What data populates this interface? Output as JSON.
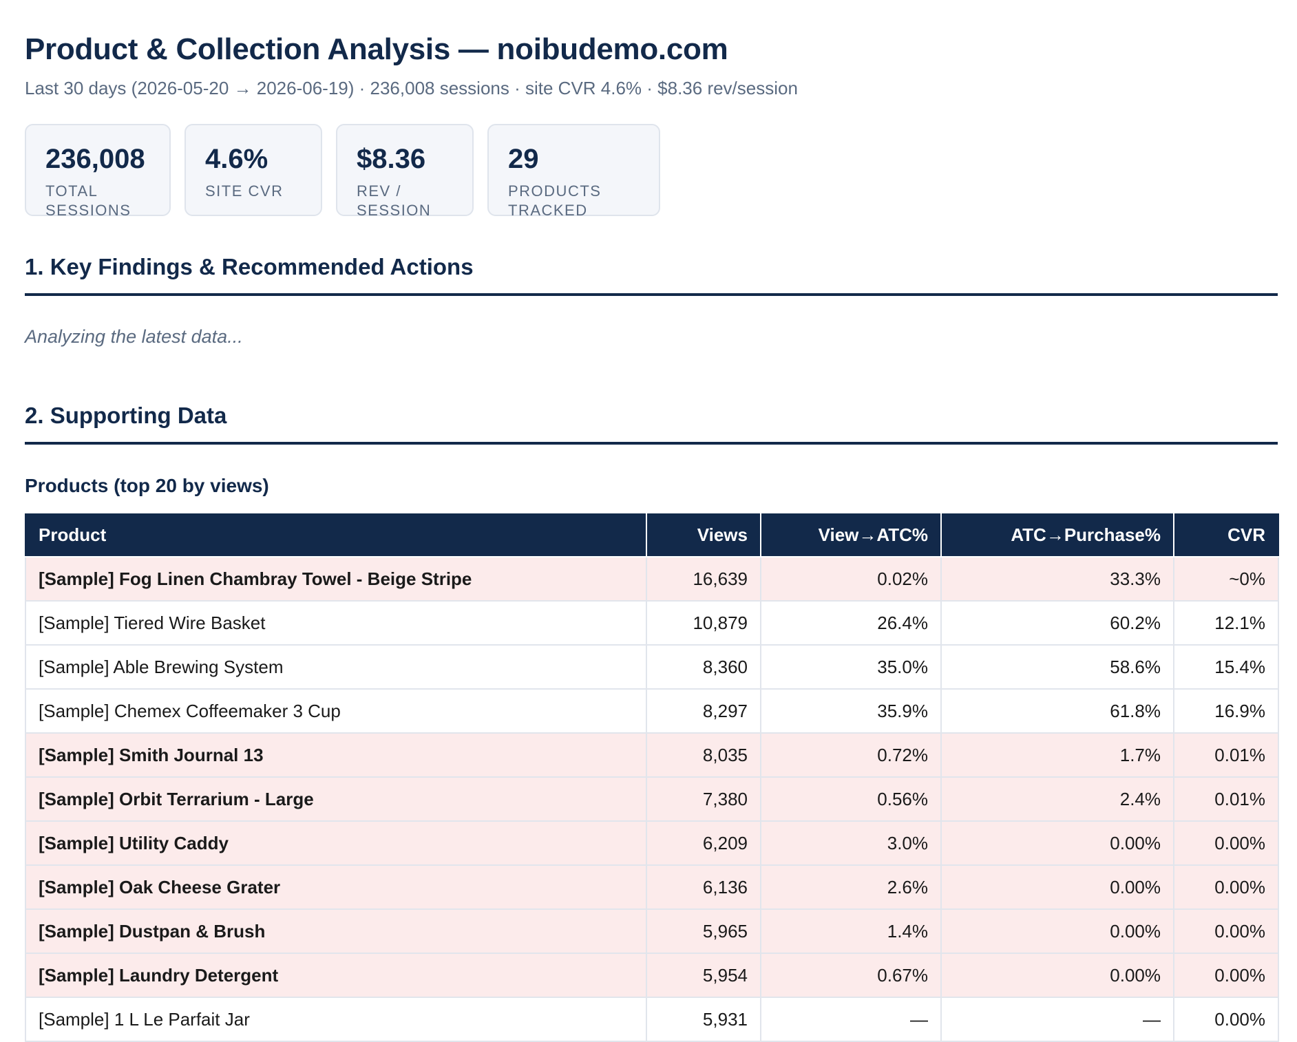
{
  "header": {
    "title": "Product & Collection Analysis — noibudemo.com",
    "subtitle": "Last 30 days (2026-05-20 → 2026-06-19) · 236,008 sessions · site CVR 4.6% · $8.36 rev/session"
  },
  "kpis": [
    {
      "value": "236,008",
      "label": "TOTAL SESSIONS"
    },
    {
      "value": "4.6%",
      "label": "SITE CVR"
    },
    {
      "value": "$8.36",
      "label": "REV / SESSION"
    },
    {
      "value": "29",
      "label": "PRODUCTS TRACKED"
    }
  ],
  "section1": {
    "heading": "1. Key Findings & Recommended Actions",
    "status": "Analyzing the latest data..."
  },
  "section2": {
    "heading": "2. Supporting Data",
    "table_title": "Products (top 20 by views)"
  },
  "table": {
    "columns": [
      "Product",
      "Views",
      "View→ATC%",
      "ATC→Purchase%",
      "CVR"
    ],
    "rows": [
      {
        "flag": true,
        "cells": [
          "[Sample] Fog Linen Chambray Towel - Beige Stripe",
          "16,639",
          "0.02%",
          "33.3%",
          "~0%"
        ]
      },
      {
        "flag": false,
        "cells": [
          "[Sample] Tiered Wire Basket",
          "10,879",
          "26.4%",
          "60.2%",
          "12.1%"
        ]
      },
      {
        "flag": false,
        "cells": [
          "[Sample] Able Brewing System",
          "8,360",
          "35.0%",
          "58.6%",
          "15.4%"
        ]
      },
      {
        "flag": false,
        "cells": [
          "[Sample] Chemex Coffeemaker 3 Cup",
          "8,297",
          "35.9%",
          "61.8%",
          "16.9%"
        ]
      },
      {
        "flag": true,
        "cells": [
          "[Sample] Smith Journal 13",
          "8,035",
          "0.72%",
          "1.7%",
          "0.01%"
        ]
      },
      {
        "flag": true,
        "cells": [
          "[Sample] Orbit Terrarium - Large",
          "7,380",
          "0.56%",
          "2.4%",
          "0.01%"
        ]
      },
      {
        "flag": true,
        "cells": [
          "[Sample] Utility Caddy",
          "6,209",
          "3.0%",
          "0.00%",
          "0.00%"
        ]
      },
      {
        "flag": true,
        "cells": [
          "[Sample] Oak Cheese Grater",
          "6,136",
          "2.6%",
          "0.00%",
          "0.00%"
        ]
      },
      {
        "flag": true,
        "cells": [
          "[Sample] Dustpan & Brush",
          "5,965",
          "1.4%",
          "0.00%",
          "0.00%"
        ]
      },
      {
        "flag": true,
        "cells": [
          "[Sample] Laundry Detergent",
          "5,954",
          "0.67%",
          "0.00%",
          "0.00%"
        ]
      },
      {
        "flag": false,
        "cells": [
          "[Sample] 1 L Le Parfait Jar",
          "5,931",
          "—",
          "—",
          "0.00%"
        ]
      }
    ]
  },
  "colors": {
    "navy": "#12294a",
    "muted_text": "#5a6a80",
    "flag_row_bg": "#fcebeb",
    "card_bg": "#f4f6fa"
  }
}
